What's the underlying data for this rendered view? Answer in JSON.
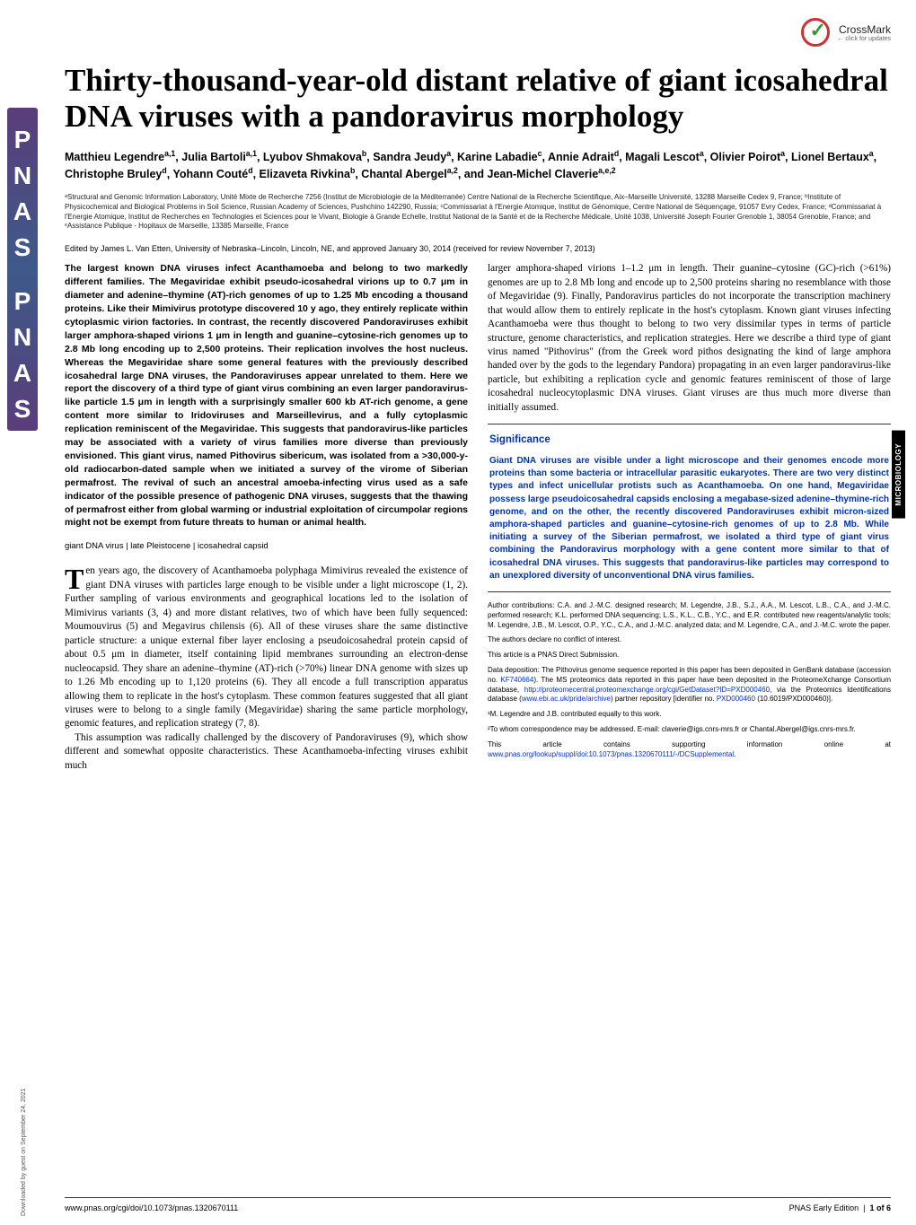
{
  "crossmark": {
    "label": "CrossMark",
    "sub": "← click for updates"
  },
  "title": "Thirty-thousand-year-old distant relative of giant icosahedral DNA viruses with a pandoravirus morphology",
  "authors_html": "Matthieu Legendre<sup>a,1</sup>, Julia Bartoli<sup>a,1</sup>, Lyubov Shmakova<sup>b</sup>, Sandra Jeudy<sup>a</sup>, Karine Labadie<sup>c</sup>, Annie Adrait<sup>d</sup>, Magali Lescot<sup>a</sup>, Olivier Poirot<sup>a</sup>, Lionel Bertaux<sup>a</sup>, Christophe Bruley<sup>d</sup>, Yohann Couté<sup>d</sup>, Elizaveta Rivkina<sup>b</sup>, Chantal Abergel<sup>a,2</sup>, and Jean-Michel Claverie<sup>a,e,2</sup>",
  "affiliations": "ᵃStructural and Genomic Information Laboratory, Unité Mixte de Recherche 7256 (Institut de Microbiologie de la Méditerranée) Centre National de la Recherche Scientifique, Aix–Marseille Université, 13288 Marseille Cedex 9, France; ᵇInstitute of Physicochemical and Biological Problems in Soil Science, Russian Academy of Sciences, Pushchino 142290, Russia; ᶜCommissariat à l'Energie Atomique, Institut de Génomique, Centre National de Séquençage, 91057 Evry Cedex, France; ᵈCommissariat à l'Energie Atomique, Institut de Recherches en Technologies et Sciences pour le Vivant, Biologie à Grande Echelle, Institut National de la Santé et de la Recherche Médicale, Unité 1038, Université Joseph Fourier Grenoble 1, 38054 Grenoble, France; and ᵉAssistance Publique - Hopitaux de Marseille, 13385 Marseille, France",
  "edited": "Edited by James L. Van Etten, University of Nebraska–Lincoln, Lincoln, NE, and approved January 30, 2014 (received for review November 7, 2013)",
  "abstract": "The largest known DNA viruses infect Acanthamoeba and belong to two markedly different families. The Megaviridae exhibit pseudo-icosahedral virions up to 0.7 μm in diameter and adenine–thymine (AT)-rich genomes of up to 1.25 Mb encoding a thousand proteins. Like their Mimivirus prototype discovered 10 y ago, they entirely replicate within cytoplasmic virion factories. In contrast, the recently discovered Pandoraviruses exhibit larger amphora-shaped virions 1 μm in length and guanine–cytosine-rich genomes up to 2.8 Mb long encoding up to 2,500 proteins. Their replication involves the host nucleus. Whereas the Megaviridae share some general features with the previously described icosahedral large DNA viruses, the Pandoraviruses appear unrelated to them. Here we report the discovery of a third type of giant virus combining an even larger pandoravirus-like particle 1.5 μm in length with a surprisingly smaller 600 kb AT-rich genome, a gene content more similar to Iridoviruses and Marseillevirus, and a fully cytoplasmic replication reminiscent of the Megaviridae. This suggests that pandoravirus-like particles may be associated with a variety of virus families more diverse than previously envisioned. This giant virus, named Pithovirus sibericum, was isolated from a >30,000-y-old radiocarbon-dated sample when we initiated a survey of the virome of Siberian permafrost. The revival of such an ancestral amoeba-infecting virus used as a safe indicator of the possible presence of pathogenic DNA viruses, suggests that the thawing of permafrost either from global warming or industrial exploitation of circumpolar regions might not be exempt from future threats to human or animal health.",
  "keywords": "giant DNA virus | late Pleistocene | icosahedral capsid",
  "body_left": "Ten years ago, the discovery of Acanthamoeba polyphaga Mimivirus revealed the existence of giant DNA viruses with particles large enough to be visible under a light microscope (1, 2). Further sampling of various environments and geographical locations led to the isolation of Mimivirus variants (3, 4) and more distant relatives, two of which have been fully sequenced: Moumouvirus (5) and Megavirus chilensis (6). All of these viruses share the same distinctive particle structure: a unique external fiber layer enclosing a pseudoicosahedral protein capsid of about 0.5 μm in diameter, itself containing lipid membranes surrounding an electron-dense nucleocapsid. They share an adenine–thymine (AT)-rich (>70%) linear DNA genome with sizes up to 1.26 Mb encoding up to 1,120 proteins (6). They all encode a full transcription apparatus allowing them to replicate in the host's cytoplasm. These common features suggested that all giant viruses were to belong to a single family (Megaviridae) sharing the same particle morphology, genomic features, and replication strategy (7, 8).\n This assumption was radically challenged by the discovery of Pandoraviruses (9), which show different and somewhat opposite characteristics. These Acanthamoeba-infecting viruses exhibit much",
  "body_right_top": "larger amphora-shaped virions 1–1.2 μm in length. Their guanine–cytosine (GC)-rich (>61%) genomes are up to 2.8 Mb long and encode up to 2,500 proteins sharing no resemblance with those of Megaviridae (9). Finally, Pandoravirus particles do not incorporate the transcription machinery that would allow them to entirely replicate in the host's cytoplasm. Known giant viruses infecting Acanthamoeba were thus thought to belong to two very dissimilar types in terms of particle structure, genome characteristics, and replication strategies. Here we describe a third type of giant virus named \"Pithovirus\" (from the Greek word pithos designating the kind of large amphora handed over by the gods to the legendary Pandora) propagating in an even larger pandoravirus-like particle, but exhibiting a replication cycle and genomic features reminiscent of those of large icosahedral nucleocytoplasmic DNA viruses. Giant viruses are thus much more diverse than initially assumed.",
  "significance": {
    "title": "Significance",
    "text": "Giant DNA viruses are visible under a light microscope and their genomes encode more proteins than some bacteria or intracellular parasitic eukaryotes. There are two very distinct types and infect unicellular protists such as Acanthamoeba. On one hand, Megaviridae possess large pseudoicosahedral capsids enclosing a megabase-sized adenine–thymine-rich genome, and on the other, the recently discovered Pandoraviruses exhibit micron-sized amphora-shaped particles and guanine–cytosine-rich genomes of up to 2.8 Mb. While initiating a survey of the Siberian permafrost, we isolated a third type of giant virus combining the Pandoravirus morphology with a gene content more similar to that of icosahedral DNA viruses. This suggests that pandoravirus-like particles may correspond to an unexplored diversity of unconventional DNA virus families."
  },
  "footnotes": {
    "contrib": "Author contributions: C.A. and J.-M.C. designed research; M. Legendre, J.B., S.J., A.A., M. Lescot, L.B., C.A., and J.-M.C. performed research; K.L. performed DNA sequencing; L.S., K.L., C.B., Y.C., and E.R. contributed new reagents/analytic tools; M. Legendre, J.B., M. Lescot, O.P., Y.C., C.A., and J.-M.C. analyzed data; and M. Legendre, C.A., and J.-M.C. wrote the paper.",
    "coi": "The authors declare no conflict of interest.",
    "direct": "This article is a PNAS Direct Submission.",
    "data": "Data deposition: The Pithovirus genome sequence reported in this paper has been deposited in GenBank database (accession no. KF740664). The MS proteomics data reported in this paper have been deposited in the ProteomeXchange Consortium database, http://proteomecentral.proteomexchange.org/cgi/GetDataset?ID=PXD000460, via the Proteomics Identifications database (www.ebi.ac.uk/pride/archive) partner repository [identifier no. PXD000460 (10.6019/PXD000460)].",
    "eq": "¹M. Legendre and J.B. contributed equally to this work.",
    "corr": "²To whom correspondence may be addressed. E-mail: claverie@igs.cnrs-mrs.fr or Chantal.Abergel@igs.cnrs-mrs.fr.",
    "si": "This article contains supporting information online at www.pnas.org/lookup/suppl/doi:10.1073/pnas.1320670111/-/DCSupplemental."
  },
  "footer": {
    "left": "www.pnas.org/cgi/doi/10.1073/pnas.1320670111",
    "right": "PNAS Early Edition | 1 of 6"
  },
  "sidebar": {
    "pnas": "PNAS",
    "download": "Downloaded by guest on September 24, 2021"
  },
  "section_tab": "MICROBIOLOGY",
  "colors": {
    "link": "#0033cc",
    "sig_blue": "#0033aa",
    "crossmark_red": "#cc3333",
    "crossmark_green": "#339933",
    "tab_bg": "#000000"
  }
}
